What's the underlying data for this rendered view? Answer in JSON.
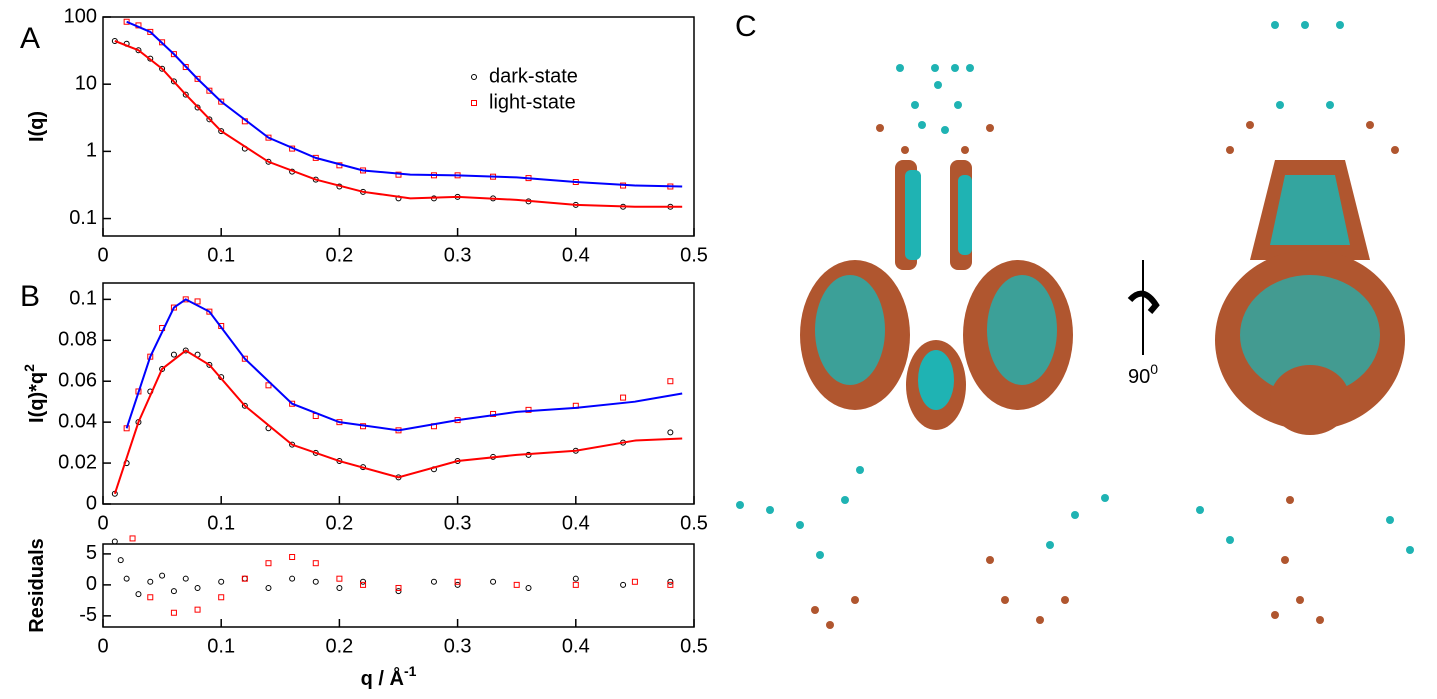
{
  "chart_data": [
    {
      "type": "scatter",
      "panel_label": "A",
      "ylabel": "I(q)",
      "log_y": true,
      "xlim": [
        0,
        0.5
      ],
      "xticks": [
        0,
        0.1,
        0.2,
        0.3,
        0.4,
        0.5
      ],
      "ylim": [
        0.055,
        100
      ],
      "yticks": [
        0.1,
        1,
        10,
        100
      ],
      "legend": true,
      "legend_position": "upper right",
      "series": [
        {
          "name": "dark-state",
          "color": "#000000",
          "marker": "circle",
          "mode": "markers",
          "x": [
            0.01,
            0.02,
            0.03,
            0.04,
            0.05,
            0.06,
            0.07,
            0.08,
            0.09,
            0.1,
            0.12,
            0.14,
            0.16,
            0.18,
            0.2,
            0.22,
            0.25,
            0.28,
            0.3,
            0.33,
            0.36,
            0.4,
            0.44,
            0.48
          ],
          "values": [
            44,
            40,
            32,
            24,
            17,
            11,
            7,
            4.5,
            3,
            2,
            1.1,
            0.7,
            0.5,
            0.38,
            0.3,
            0.25,
            0.2,
            0.2,
            0.21,
            0.2,
            0.18,
            0.16,
            0.15,
            0.15
          ]
        },
        {
          "name": "light-state",
          "color": "#ff0000",
          "marker": "square",
          "mode": "markers",
          "x": [
            0.02,
            0.03,
            0.04,
            0.05,
            0.06,
            0.07,
            0.08,
            0.09,
            0.1,
            0.12,
            0.14,
            0.16,
            0.18,
            0.2,
            0.22,
            0.25,
            0.28,
            0.3,
            0.33,
            0.36,
            0.4,
            0.44,
            0.48
          ],
          "values": [
            85,
            75,
            60,
            42,
            28,
            18,
            12,
            8,
            5.5,
            2.8,
            1.6,
            1.1,
            0.8,
            0.62,
            0.52,
            0.45,
            0.44,
            0.44,
            0.42,
            0.4,
            0.35,
            0.31,
            0.3
          ]
        },
        {
          "color": "#ff0000",
          "mode": "line",
          "x": [
            0.01,
            0.03,
            0.05,
            0.07,
            0.1,
            0.14,
            0.18,
            0.22,
            0.26,
            0.3,
            0.35,
            0.4,
            0.45,
            0.49
          ],
          "values": [
            44,
            32,
            17,
            7,
            2,
            0.7,
            0.38,
            0.25,
            0.2,
            0.21,
            0.19,
            0.16,
            0.15,
            0.15
          ]
        },
        {
          "color": "#0000ff",
          "mode": "line",
          "x": [
            0.02,
            0.04,
            0.06,
            0.08,
            0.1,
            0.14,
            0.18,
            0.22,
            0.26,
            0.3,
            0.35,
            0.4,
            0.45,
            0.49
          ],
          "values": [
            85,
            60,
            28,
            12,
            5.5,
            1.6,
            0.8,
            0.52,
            0.45,
            0.44,
            0.41,
            0.35,
            0.31,
            0.3
          ]
        }
      ]
    },
    {
      "type": "scatter",
      "panel_label": "B",
      "ylabel": "I(q)*q",
      "ylabel_sup": "2",
      "xlim": [
        0,
        0.5
      ],
      "xticks": [
        0,
        0.1,
        0.2,
        0.3,
        0.4,
        0.5
      ],
      "ylim": [
        0,
        0.108
      ],
      "yticks": [
        0,
        0.02,
        0.04,
        0.06,
        0.08,
        0.1
      ],
      "series": [
        {
          "color": "#000000",
          "marker": "circle",
          "mode": "markers",
          "x": [
            0.01,
            0.02,
            0.03,
            0.04,
            0.05,
            0.06,
            0.07,
            0.08,
            0.09,
            0.1,
            0.12,
            0.14,
            0.16,
            0.18,
            0.2,
            0.22,
            0.25,
            0.28,
            0.3,
            0.33,
            0.36,
            0.4,
            0.44,
            0.48
          ],
          "values": [
            0.005,
            0.02,
            0.04,
            0.055,
            0.066,
            0.073,
            0.075,
            0.073,
            0.068,
            0.062,
            0.048,
            0.037,
            0.029,
            0.025,
            0.021,
            0.018,
            0.013,
            0.017,
            0.021,
            0.023,
            0.024,
            0.026,
            0.03,
            0.035
          ]
        },
        {
          "color": "#ff0000",
          "marker": "square",
          "mode": "markers",
          "x": [
            0.02,
            0.03,
            0.04,
            0.05,
            0.06,
            0.07,
            0.08,
            0.09,
            0.1,
            0.12,
            0.14,
            0.16,
            0.18,
            0.2,
            0.22,
            0.25,
            0.28,
            0.3,
            0.33,
            0.36,
            0.4,
            0.44,
            0.48
          ],
          "values": [
            0.037,
            0.055,
            0.072,
            0.086,
            0.096,
            0.1,
            0.099,
            0.094,
            0.087,
            0.071,
            0.058,
            0.049,
            0.043,
            0.04,
            0.038,
            0.036,
            0.038,
            0.041,
            0.044,
            0.046,
            0.048,
            0.052,
            0.06
          ]
        },
        {
          "color": "#ff0000",
          "mode": "line",
          "x": [
            0.01,
            0.03,
            0.05,
            0.07,
            0.09,
            0.12,
            0.16,
            0.2,
            0.25,
            0.3,
            0.35,
            0.4,
            0.45,
            0.49
          ],
          "values": [
            0.005,
            0.04,
            0.066,
            0.075,
            0.068,
            0.048,
            0.029,
            0.021,
            0.013,
            0.021,
            0.024,
            0.026,
            0.031,
            0.032
          ]
        },
        {
          "color": "#0000ff",
          "mode": "line",
          "x": [
            0.02,
            0.04,
            0.06,
            0.07,
            0.09,
            0.12,
            0.16,
            0.2,
            0.25,
            0.3,
            0.35,
            0.4,
            0.45,
            0.49
          ],
          "values": [
            0.037,
            0.072,
            0.096,
            0.1,
            0.094,
            0.071,
            0.049,
            0.04,
            0.036,
            0.041,
            0.045,
            0.047,
            0.05,
            0.054
          ]
        }
      ]
    },
    {
      "type": "scatter",
      "ylabel": "Residuals",
      "xlabel": "q / Å",
      "xlabel_sup": "-1",
      "xlim": [
        0,
        0.5
      ],
      "xticks": [
        0,
        0.1,
        0.2,
        0.3,
        0.4,
        0.5
      ],
      "ylim": [
        -6.8,
        6.6
      ],
      "yticks": [
        -5,
        0,
        5
      ],
      "series": [
        {
          "color": "#000000",
          "marker": "circle",
          "mode": "markers",
          "x": [
            0.01,
            0.015,
            0.02,
            0.03,
            0.04,
            0.05,
            0.06,
            0.07,
            0.08,
            0.1,
            0.12,
            0.14,
            0.16,
            0.18,
            0.2,
            0.22,
            0.25,
            0.28,
            0.3,
            0.33,
            0.36,
            0.4,
            0.44,
            0.48
          ],
          "values": [
            7,
            4,
            1,
            -1.5,
            0.5,
            1.5,
            -1,
            1,
            -0.5,
            0.5,
            1,
            -0.5,
            1,
            0.5,
            -0.5,
            0.5,
            -1,
            0.5,
            0,
            0.5,
            -0.5,
            1,
            0,
            0.5
          ]
        },
        {
          "color": "#ff0000",
          "marker": "square",
          "mode": "markers",
          "x": [
            0.025,
            0.04,
            0.06,
            0.08,
            0.1,
            0.12,
            0.14,
            0.16,
            0.18,
            0.2,
            0.22,
            0.25,
            0.3,
            0.35,
            0.4,
            0.45,
            0.48
          ],
          "values": [
            7.5,
            -2,
            -4.5,
            -4,
            -2,
            1,
            3.5,
            4.5,
            3.5,
            1,
            0,
            -0.5,
            0.5,
            0,
            0,
            0.5,
            0
          ]
        }
      ]
    }
  ],
  "panel_c": {
    "label": "C",
    "rotation": "90",
    "rotation_sup": "0"
  }
}
